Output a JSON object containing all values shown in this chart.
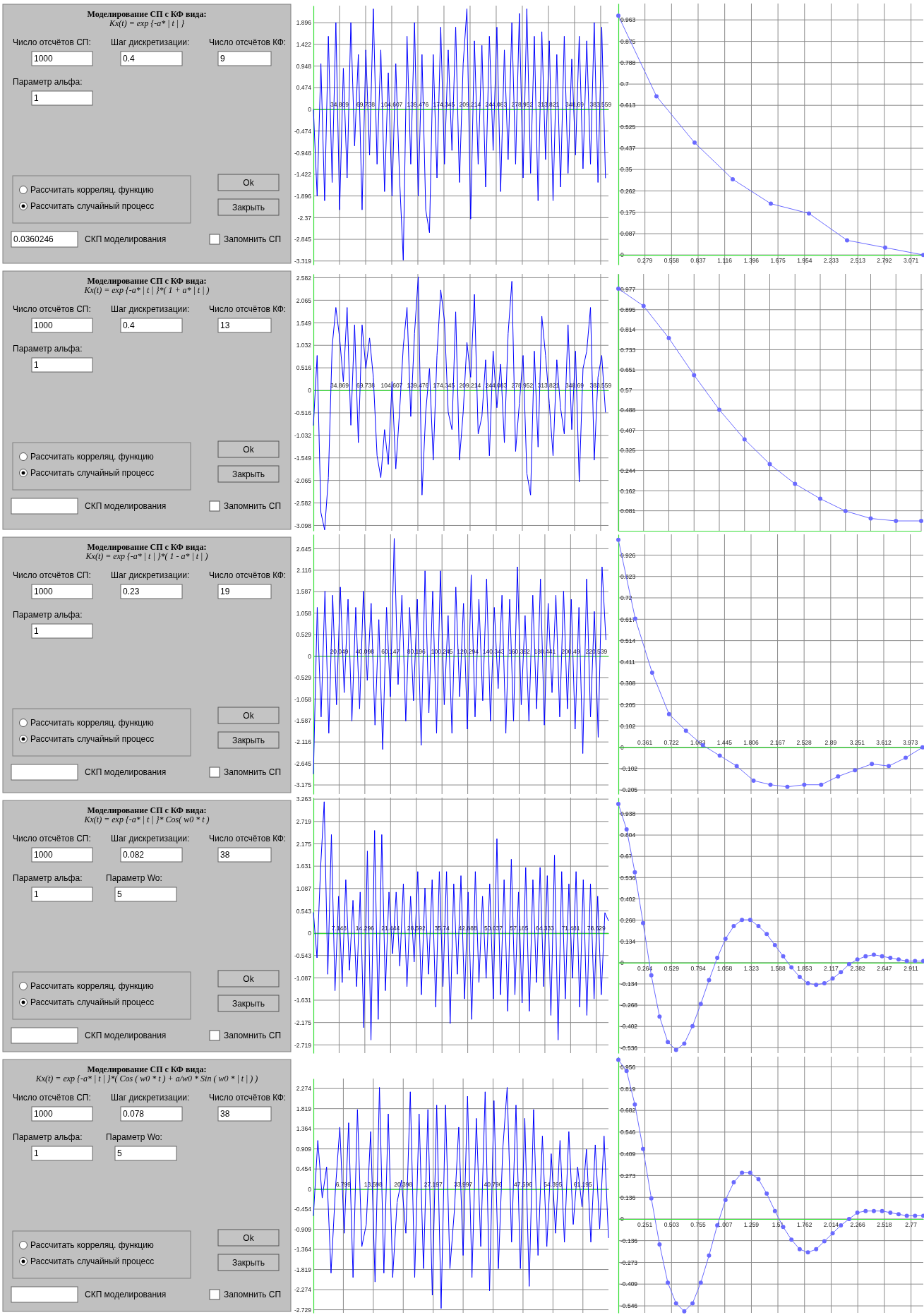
{
  "chart_data": [
    {
      "type": "other",
      "title": "Моделирование СП с КФ вида:",
      "subtitle": "Kx(t) = exp {-a* | t | }",
      "annotations": [
        "Число отсчётов СП:",
        "1000",
        "Шаг дискретизации:",
        "0.4",
        "Число отсчётов КФ:",
        "9",
        "Параметр альфа:",
        "1",
        "0.0360246",
        "Рассчитать корреляц. функцию",
        "Рассчитать случайный процесс",
        "Ok",
        "Закрыть",
        "СКП моделирования",
        "Запомнить СП"
      ]
    },
    {
      "type": "line",
      "color": "#0000ff",
      "grid": true,
      "xlim": [
        0,
        394
      ],
      "ylim": [
        -3.4,
        2.27
      ],
      "xticks": [
        34.869,
        69.738,
        104.607,
        139.476,
        174.345,
        209.214,
        244.083,
        278.952,
        313.821,
        348.69,
        383.559
      ],
      "yticks": [
        1.896,
        1.422,
        0.948,
        0.474,
        0,
        -0.474,
        -0.948,
        -1.422,
        -1.896,
        -2.37,
        -2.845,
        -3.319
      ],
      "x": [
        0,
        5,
        10,
        15,
        20,
        25,
        30,
        35,
        40,
        45,
        50,
        55,
        60,
        65,
        70,
        75,
        80,
        85,
        90,
        95,
        100,
        105,
        110,
        115,
        120,
        125,
        130,
        135,
        140,
        145,
        150,
        155,
        160,
        165,
        170,
        175,
        180,
        185,
        190,
        195,
        200,
        205,
        210,
        215,
        220,
        225,
        230,
        235,
        240,
        245,
        250,
        255,
        260,
        265,
        270,
        275,
        280,
        285,
        290,
        295,
        300,
        305,
        310,
        315,
        320,
        325,
        330,
        335,
        340,
        345,
        350,
        355,
        360,
        365,
        370,
        375,
        380,
        385,
        390
      ],
      "values": [
        0,
        -1.9,
        1.0,
        -2.0,
        1.6,
        -1.6,
        1.9,
        -2.2,
        0.9,
        -1.5,
        1.9,
        -0.8,
        1.2,
        -2.2,
        1.3,
        -1.0,
        2.2,
        -1.2,
        1.3,
        -1.8,
        0.8,
        -1.9,
        1.0,
        -1.5,
        -3.3,
        1.6,
        -1.2,
        1.9,
        -1.9,
        1.2,
        -2.2,
        -2.7,
        1.2,
        -1.5,
        1.8,
        -1.2,
        1.3,
        -0.9,
        1.8,
        -1.6,
        1.0,
        2.2,
        -2.4,
        1.5,
        -1.2,
        1.4,
        -1.7,
        1.6,
        -0.9,
        1.8,
        -1.8,
        1.3,
        -1.1,
        1.9,
        -1.2,
        2.1,
        -1.5,
        2.2,
        -1.4,
        1.6,
        -2.0,
        1.7,
        -1.1,
        1.5,
        -2.0,
        1.2,
        -1.7,
        1.6,
        -1.4,
        1.1,
        -1.0,
        1.6,
        -1.3,
        1.5,
        -1.2,
        1.9,
        -1.6,
        1.8,
        -1.5
      ]
    },
    {
      "type": "line",
      "color": "#6a6aff",
      "grid": true,
      "marker": "circle",
      "xlim": [
        0,
        3.2
      ],
      "ylim": [
        -0.04,
        1.03
      ],
      "xticks": [
        0.279,
        0.558,
        0.837,
        1.116,
        1.396,
        1.675,
        1.954,
        2.233,
        2.513,
        2.792,
        3.071
      ],
      "yticks": [
        0,
        0.087,
        0.175,
        0.262,
        0.35,
        0.437,
        0.525,
        0.613,
        0.7,
        0.788,
        0.875,
        0.963
      ],
      "x": [
        0,
        0.4,
        0.8,
        1.2,
        1.6,
        2.0,
        2.4,
        2.8,
        3.2
      ],
      "values": [
        0.98,
        0.65,
        0.46,
        0.31,
        0.21,
        0.17,
        0.06,
        0.03,
        0.0
      ]
    },
    {
      "type": "other",
      "title": "Моделирование СП с КФ вида:",
      "subtitle": "Kx(t) = exp {-a* | t | }*( 1 + a* | t | )",
      "annotations": [
        "Число отсчётов СП:",
        "1000",
        "Шаг дискретизации:",
        "0.4",
        "Число отсчётов КФ:",
        "13",
        "Параметр альфа:",
        "1",
        "Рассчитать корреляц. функцию",
        "Рассчитать случайный процесс",
        "Ok",
        "Закрыть",
        "СКП моделирования",
        "Запомнить СП"
      ]
    },
    {
      "type": "line",
      "color": "#0000ff",
      "grid": true,
      "xlim": [
        0,
        394
      ],
      "ylim": [
        -3.22,
        2.67
      ],
      "xticks": [
        34.869,
        69.738,
        104.607,
        139.476,
        174.345,
        209.214,
        244.083,
        278.952,
        313.821,
        348.69,
        383.559
      ],
      "yticks": [
        2.582,
        2.065,
        1.549,
        1.032,
        0.516,
        0,
        -0.516,
        -1.032,
        -1.549,
        -2.065,
        -2.582,
        -3.098
      ],
      "x": [
        0,
        5,
        10,
        15,
        20,
        25,
        30,
        35,
        40,
        45,
        50,
        55,
        60,
        65,
        70,
        75,
        80,
        85,
        90,
        95,
        100,
        105,
        110,
        115,
        120,
        125,
        130,
        135,
        140,
        145,
        150,
        155,
        160,
        165,
        170,
        175,
        180,
        185,
        190,
        195,
        200,
        205,
        210,
        215,
        220,
        225,
        230,
        235,
        240,
        245,
        250,
        255,
        260,
        265,
        270,
        275,
        280,
        285,
        290,
        295,
        300,
        305,
        310,
        315,
        320,
        325,
        330,
        335,
        340,
        345,
        350,
        355,
        360,
        365,
        370,
        375,
        380,
        385,
        390
      ],
      "values": [
        -0.8,
        0.8,
        -2.8,
        -3.2,
        -2.0,
        1.0,
        1.9,
        1.2,
        0.2,
        1.9,
        -0.8,
        1.5,
        -1.2,
        1.5,
        0.5,
        1.2,
        0.3,
        -1.5,
        -2.0,
        -0.9,
        -1.7,
        0.2,
        -1.8,
        -0.5,
        1.0,
        1.9,
        -0.6,
        1.3,
        2.6,
        -2.4,
        -0.5,
        0.5,
        -1.6,
        0.8,
        2.3,
        1.6,
        -0.5,
        -0.9,
        1.8,
        -1.6,
        -0.5,
        1.1,
        0.3,
        2.2,
        -1.0,
        -0.6,
        0.7,
        -1.5,
        0.9,
        -0.4,
        0.6,
        -1.2,
        1.3,
        2.5,
        -1.4,
        -0.3,
        0.8,
        -1.9,
        -2.4,
        0.9,
        -1.3,
        1.7,
        0.8,
        -0.3,
        -1.5,
        0.7,
        -0.4,
        -1.0,
        1.5,
        -0.9,
        0.9,
        -2.1,
        0.5,
        0.9,
        1.9,
        -1.6,
        0.3,
        0.8,
        -0.5
      ]
    },
    {
      "type": "line",
      "color": "#6a6aff",
      "grid": true,
      "marker": "circle",
      "ylim": [
        0,
        1.04
      ],
      "categories": [
        null,
        null,
        null,
        null,
        null,
        null,
        null,
        null,
        null,
        null,
        null,
        null,
        null
      ],
      "yticks": [
        0.081,
        0.162,
        0.244,
        0.325,
        0.407,
        0.488,
        0.57,
        0.651,
        0.733,
        0.814,
        0.895,
        0.977
      ],
      "values": [
        0.98,
        0.91,
        0.78,
        0.63,
        0.49,
        0.37,
        0.27,
        0.19,
        0.13,
        0.08,
        0.05,
        0.04,
        0.04
      ]
    },
    {
      "type": "other",
      "title": "Моделирование СП с КФ вида:",
      "subtitle": "Kx(t) = exp {-a* | t | }*( 1 - a* | t | )",
      "annotations": [
        "Число отсчётов СП:",
        "1000",
        "Шаг дискретизации:",
        "0.23",
        "Число отсчётов КФ:",
        "19",
        "Параметр альфа:",
        "1",
        "Рассчитать корреляц. функцию",
        "Рассчитать случайный процесс",
        "Ok",
        "Закрыть",
        "СКП моделирования",
        "Запомнить СП"
      ]
    },
    {
      "type": "line",
      "color": "#0000ff",
      "grid": true,
      "xlim": [
        0,
        230
      ],
      "ylim": [
        -3.4,
        3.0
      ],
      "xticks": [
        20.049,
        40.098,
        60.147,
        80.196,
        100.245,
        120.294,
        140.343,
        160.392,
        180.441,
        200.49,
        220.539
      ],
      "yticks": [
        2.645,
        2.116,
        1.587,
        1.058,
        0.529,
        0,
        -0.529,
        -1.058,
        -1.587,
        -2.116,
        -2.645,
        -3.175
      ],
      "x": [
        0,
        3,
        6,
        9,
        12,
        15,
        18,
        21,
        24,
        27,
        30,
        33,
        36,
        39,
        42,
        45,
        48,
        51,
        54,
        57,
        60,
        63,
        66,
        69,
        72,
        75,
        78,
        81,
        84,
        87,
        90,
        93,
        96,
        99,
        102,
        105,
        108,
        111,
        114,
        117,
        120,
        123,
        126,
        129,
        132,
        135,
        138,
        141,
        144,
        147,
        150,
        153,
        156,
        159,
        162,
        165,
        168,
        171,
        174,
        177,
        180,
        183,
        186,
        189,
        192,
        195,
        198,
        201,
        204,
        207,
        210,
        213,
        216,
        219,
        222,
        225,
        228
      ],
      "values": [
        -2.9,
        1.2,
        -1.5,
        1.6,
        -1.9,
        1.5,
        -1.2,
        1.7,
        -0.9,
        1.4,
        -1.6,
        1.2,
        -1.3,
        1.6,
        -0.6,
        1.3,
        -1.7,
        0.9,
        -2.3,
        1.2,
        -1.0,
        2.9,
        -0.7,
        1.5,
        -1.6,
        1.2,
        -1.1,
        1.4,
        -2.2,
        2.1,
        -1.4,
        1.6,
        -1.9,
        2.1,
        -1.2,
        1.0,
        -1.9,
        1.7,
        -1.0,
        1.3,
        -1.8,
        2.0,
        -1.5,
        1.4,
        -1.1,
        1.9,
        -1.6,
        1.2,
        -0.8,
        1.5,
        -1.9,
        1.4,
        -1.6,
        2.2,
        -1.2,
        1.0,
        -1.6,
        1.5,
        -1.3,
        1.9,
        -1.7,
        1.3,
        -0.9,
        1.5,
        -1.5,
        1.6,
        -1.3,
        1.4,
        -1.8,
        1.2,
        -2.4,
        1.9,
        -1.5,
        1.1,
        -2.0,
        2.2,
        0.4
      ]
    },
    {
      "type": "line",
      "color": "#6a6aff",
      "grid": true,
      "marker": "circle",
      "xlim": [
        0,
        4.15
      ],
      "ylim": [
        -0.225,
        1.026
      ],
      "xticks": [
        0.361,
        0.722,
        1.083,
        1.445,
        1.806,
        2.167,
        2.528,
        2.89,
        3.251,
        3.612,
        3.973
      ],
      "yticks": [
        0.926,
        0.823,
        0.72,
        0.617,
        0.514,
        0.411,
        0.308,
        0.205,
        0.102,
        0,
        -0.102,
        -0.205
      ],
      "x": [
        0,
        0.23,
        0.46,
        0.69,
        0.92,
        1.15,
        1.38,
        1.61,
        1.84,
        2.07,
        2.3,
        2.53,
        2.76,
        2.99,
        3.22,
        3.45,
        3.68,
        3.91,
        4.14
      ],
      "values": [
        1.0,
        0.62,
        0.36,
        0.16,
        0.08,
        0.01,
        -0.04,
        -0.09,
        -0.16,
        -0.18,
        -0.19,
        -0.18,
        -0.18,
        -0.14,
        -0.11,
        -0.08,
        -0.09,
        -0.05,
        0.0
      ]
    },
    {
      "type": "other",
      "title": "Моделирование СП с КФ вида:",
      "subtitle": "Kx(t) = exp {-a* | t | }* Cos( w0 * t )",
      "annotations": [
        "Число отсчётов СП:",
        "1000",
        "Шаг дискретизации:",
        "0.082",
        "Число отсчётов КФ:",
        "38",
        "Параметр альфа:",
        "1",
        "Параметр Wo:",
        "5",
        "Рассчитать корреляц. функцию",
        "Рассчитать случайный процесс",
        "Ok",
        "Закрыть",
        "СКП моделирования",
        "Запомнить СП"
      ]
    },
    {
      "type": "line",
      "color": "#0000ff",
      "grid": true,
      "xlim": [
        0,
        82
      ],
      "ylim": [
        -2.92,
        3.3
      ],
      "xticks": [
        7.148,
        14.296,
        21.444,
        28.592,
        35.74,
        42.888,
        50.037,
        57.185,
        64.333,
        71.481,
        78.629
      ],
      "yticks": [
        3.263,
        2.719,
        2.175,
        1.631,
        1.087,
        0.543,
        0,
        -0.543,
        -1.087,
        -1.631,
        -2.175,
        -2.719
      ],
      "x": [
        0,
        1,
        2,
        3,
        4,
        5,
        6,
        7,
        8,
        9,
        10,
        11,
        12,
        13,
        14,
        15,
        16,
        17,
        18,
        19,
        20,
        21,
        22,
        23,
        24,
        25,
        26,
        27,
        28,
        29,
        30,
        31,
        32,
        33,
        34,
        35,
        36,
        37,
        38,
        39,
        40,
        41,
        42,
        43,
        44,
        45,
        46,
        47,
        48,
        49,
        50,
        51,
        52,
        53,
        54,
        55,
        56,
        57,
        58,
        59,
        60,
        61,
        62,
        63,
        64,
        65,
        66,
        67,
        68,
        69,
        70,
        71,
        72,
        73,
        74,
        75,
        76,
        77,
        78,
        79,
        80,
        81,
        82
      ],
      "values": [
        0.5,
        -0.6,
        1.6,
        3.2,
        -1.0,
        2.4,
        -1.4,
        0.9,
        -1.2,
        1.3,
        -0.9,
        0.8,
        -1.3,
        1.0,
        -2.3,
        2.0,
        -2.6,
        2.5,
        -2.1,
        2.4,
        -1.4,
        1.0,
        -0.5,
        1.0,
        -0.8,
        1.2,
        -1.3,
        0.9,
        -0.7,
        1.5,
        -1.5,
        1.1,
        -1.0,
        1.3,
        -1.8,
        1.5,
        -1.3,
        1.5,
        -2.2,
        1.2,
        -1.0,
        1.4,
        -1.6,
        1.0,
        -2.1,
        1.5,
        -1.2,
        0.9,
        -1.1,
        1.2,
        -1.6,
        2.3,
        -1.5,
        1.3,
        -1.9,
        1.8,
        -1.5,
        1.0,
        -1.7,
        1.6,
        -1.9,
        1.3,
        -1.2,
        1.6,
        -1.3,
        1.4,
        -2.0,
        1.9,
        -2.6,
        1.5,
        -1.6,
        1.2,
        -1.1,
        1.5,
        -1.8,
        1.3,
        -2.0,
        1.2,
        -1.6,
        0.9,
        -1.5,
        0.5,
        0.3
      ]
    },
    {
      "type": "line",
      "color": "#6a6aff",
      "grid": true,
      "marker": "circle",
      "xlim": [
        0,
        3.034
      ],
      "ylim": [
        -0.57,
        1.04
      ],
      "xticks": [
        0.264,
        0.529,
        0.794,
        1.058,
        1.323,
        1.588,
        1.853,
        2.117,
        2.382,
        2.647,
        2.911
      ],
      "yticks": [
        0.938,
        0.804,
        0.67,
        0.536,
        0.402,
        0.268,
        0.134,
        0,
        -0.134,
        -0.268,
        -0.402,
        -0.536
      ],
      "x": [
        0,
        0.082,
        0.164,
        0.246,
        0.328,
        0.41,
        0.492,
        0.574,
        0.656,
        0.738,
        0.82,
        0.902,
        0.984,
        1.066,
        1.148,
        1.23,
        1.312,
        1.394,
        1.476,
        1.558,
        1.64,
        1.722,
        1.804,
        1.886,
        1.968,
        2.05,
        2.132,
        2.214,
        2.296,
        2.378,
        2.46,
        2.542,
        2.624,
        2.706,
        2.788,
        2.87,
        2.952,
        3.034
      ],
      "values": [
        1.0,
        0.84,
        0.57,
        0.25,
        -0.08,
        -0.34,
        -0.5,
        -0.55,
        -0.51,
        -0.4,
        -0.26,
        -0.11,
        0.03,
        0.15,
        0.23,
        0.27,
        0.27,
        0.23,
        0.18,
        0.11,
        0.04,
        -0.03,
        -0.09,
        -0.13,
        -0.14,
        -0.13,
        -0.1,
        -0.06,
        -0.01,
        0.02,
        0.04,
        0.05,
        0.04,
        0.03,
        0.02,
        0.01,
        0.01,
        0.01
      ]
    },
    {
      "type": "other",
      "title": "Моделирование СП с КФ вида:",
      "subtitle": "Kx(t) = exp {-a* | t | }*( Cos ( w0 * t ) + a/w0 * Sin ( w0 * | t | ) )",
      "annotations": [
        "Число отсчётов СП:",
        "1000",
        "Шаг дискретизации:",
        "0.078",
        "Число отсчётов КФ:",
        "38",
        "Параметр альфа:",
        "1",
        "Параметр Wo:",
        "5",
        "Рассчитать корреляц. функцию",
        "Рассчитать случайный процесс",
        "Ok",
        "Закрыть",
        "СКП моделирования",
        "Запомнить СП"
      ]
    },
    {
      "type": "line",
      "color": "#0000ff",
      "grid": true,
      "xlim": [
        0,
        67
      ],
      "ylim": [
        -2.8,
        2.5
      ],
      "xticks": [
        6.799,
        13.598,
        20.398,
        27.197,
        33.997,
        40.796,
        47.596,
        54.395,
        61.195
      ],
      "yticks": [
        2.274,
        1.819,
        1.364,
        0.909,
        0.454,
        0,
        -0.454,
        -0.909,
        -1.364,
        -1.819,
        -2.274,
        -2.729
      ],
      "x": [
        0,
        1,
        2,
        3,
        4,
        5,
        6,
        7,
        8,
        9,
        10,
        11,
        12,
        13,
        14,
        15,
        16,
        17,
        18,
        19,
        20,
        21,
        22,
        23,
        24,
        25,
        26,
        27,
        28,
        29,
        30,
        31,
        32,
        33,
        34,
        35,
        36,
        37,
        38,
        39,
        40,
        41,
        42,
        43,
        44,
        45,
        46,
        47,
        48,
        49,
        50,
        51,
        52,
        53,
        54,
        55,
        56,
        57,
        58,
        59,
        60,
        61,
        62,
        63,
        64,
        65,
        66,
        67
      ],
      "values": [
        -0.6,
        1.1,
        -0.2,
        0.5,
        -1.9,
        0.0,
        1.4,
        -1.0,
        1.5,
        -2.0,
        1.8,
        -1.3,
        -0.8,
        1.3,
        -2.1,
        2.3,
        -1.9,
        1.7,
        -2.0,
        -0.3,
        0.2,
        -1.0,
        2.2,
        -2.0,
        1.7,
        -1.8,
        1.8,
        -2.4,
        1.9,
        -2.7,
        1.9,
        -1.8,
        -0.5,
        1.4,
        -1.5,
        2.1,
        -2.0,
        1.6,
        -1.3,
        2.2,
        -2.3,
        2.0,
        -1.8,
        0.9,
        2.3,
        -1.2,
        1.9,
        -1.8,
        1.6,
        -2.2,
        1.8,
        -1.5,
        1.2,
        -1.3,
        0.8,
        -1.0,
        1.1,
        -1.2,
        1.3,
        -0.8,
        0.5,
        -0.4,
        0.9,
        -1.2,
        1.0,
        -0.9,
        1.2,
        -1.1
      ]
    },
    {
      "type": "line",
      "color": "#6a6aff",
      "grid": true,
      "marker": "circle",
      "xlim": [
        0,
        2.886
      ],
      "ylim": [
        -0.59,
        1.02
      ],
      "xticks": [
        0.251,
        0.503,
        0.755,
        1.007,
        1.259,
        1.51,
        1.762,
        2.014,
        2.266,
        2.518,
        2.77
      ],
      "yticks": [
        0.956,
        0.819,
        0.682,
        0.546,
        0.409,
        0.273,
        0.136,
        0,
        -0.136,
        -0.273,
        -0.409,
        -0.546
      ],
      "x": [
        0,
        0.078,
        0.156,
        0.234,
        0.312,
        0.39,
        0.468,
        0.546,
        0.624,
        0.702,
        0.78,
        0.858,
        0.936,
        1.014,
        1.092,
        1.17,
        1.248,
        1.326,
        1.404,
        1.482,
        1.56,
        1.638,
        1.716,
        1.794,
        1.872,
        1.95,
        2.028,
        2.106,
        2.184,
        2.262,
        2.34,
        2.418,
        2.496,
        2.574,
        2.652,
        2.73,
        2.808,
        2.886
      ],
      "values": [
        1.0,
        0.93,
        0.72,
        0.44,
        0.13,
        -0.16,
        -0.4,
        -0.53,
        -0.58,
        -0.53,
        -0.4,
        -0.23,
        -0.04,
        0.12,
        0.23,
        0.29,
        0.29,
        0.25,
        0.16,
        0.05,
        -0.05,
        -0.13,
        -0.19,
        -0.21,
        -0.19,
        -0.14,
        -0.09,
        -0.04,
        0.0,
        0.04,
        0.05,
        0.05,
        0.05,
        0.04,
        0.03,
        0.02,
        0.02,
        0.02
      ]
    }
  ]
}
